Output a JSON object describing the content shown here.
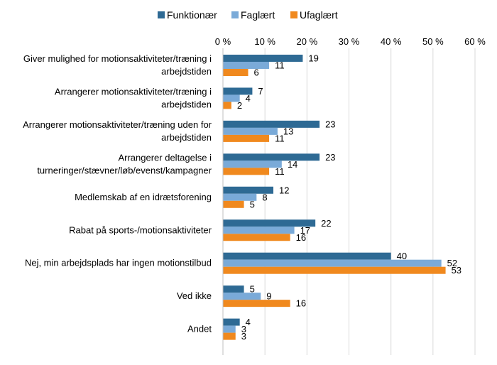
{
  "chart_data": {
    "type": "bar",
    "orientation": "horizontal",
    "title": "",
    "xlabel": "",
    "ylabel": "",
    "xlim": [
      0,
      60
    ],
    "x_ticks": [
      0,
      10,
      20,
      30,
      40,
      50,
      60
    ],
    "tick_suffix": " %",
    "grid": true,
    "legend_position": "top",
    "categories": [
      [
        "Giver mulighed for motionsaktiviteter/træning i",
        "arbejdstiden"
      ],
      [
        "Arrangerer motionsaktiviteter/træning i",
        "arbejdstiden"
      ],
      [
        "Arrangerer motionsaktiviteter/træning uden for",
        "arbejdstiden"
      ],
      [
        "Arrangerer deltagelse i",
        "turneringer/stævner/løb/evenst/kampagner"
      ],
      [
        "Medlemskab af en idrætsforening"
      ],
      [
        "Rabat på sports-/motionsaktiviteter"
      ],
      [
        "Nej, min arbejdsplads har ingen motionstilbud"
      ],
      [
        "Ved ikke"
      ],
      [
        "Andet"
      ]
    ],
    "series": [
      {
        "name": "Funktionær",
        "color": "#2e6a94",
        "values": [
          19,
          7,
          23,
          23,
          12,
          22,
          40,
          5,
          4
        ]
      },
      {
        "name": "Faglært",
        "color": "#7aaad8",
        "values": [
          11,
          4,
          13,
          14,
          8,
          17,
          52,
          9,
          3
        ]
      },
      {
        "name": "Ufaglært",
        "color": "#f0891e",
        "values": [
          6,
          2,
          11,
          11,
          5,
          16,
          53,
          16,
          3
        ]
      }
    ],
    "data_labels": true
  }
}
